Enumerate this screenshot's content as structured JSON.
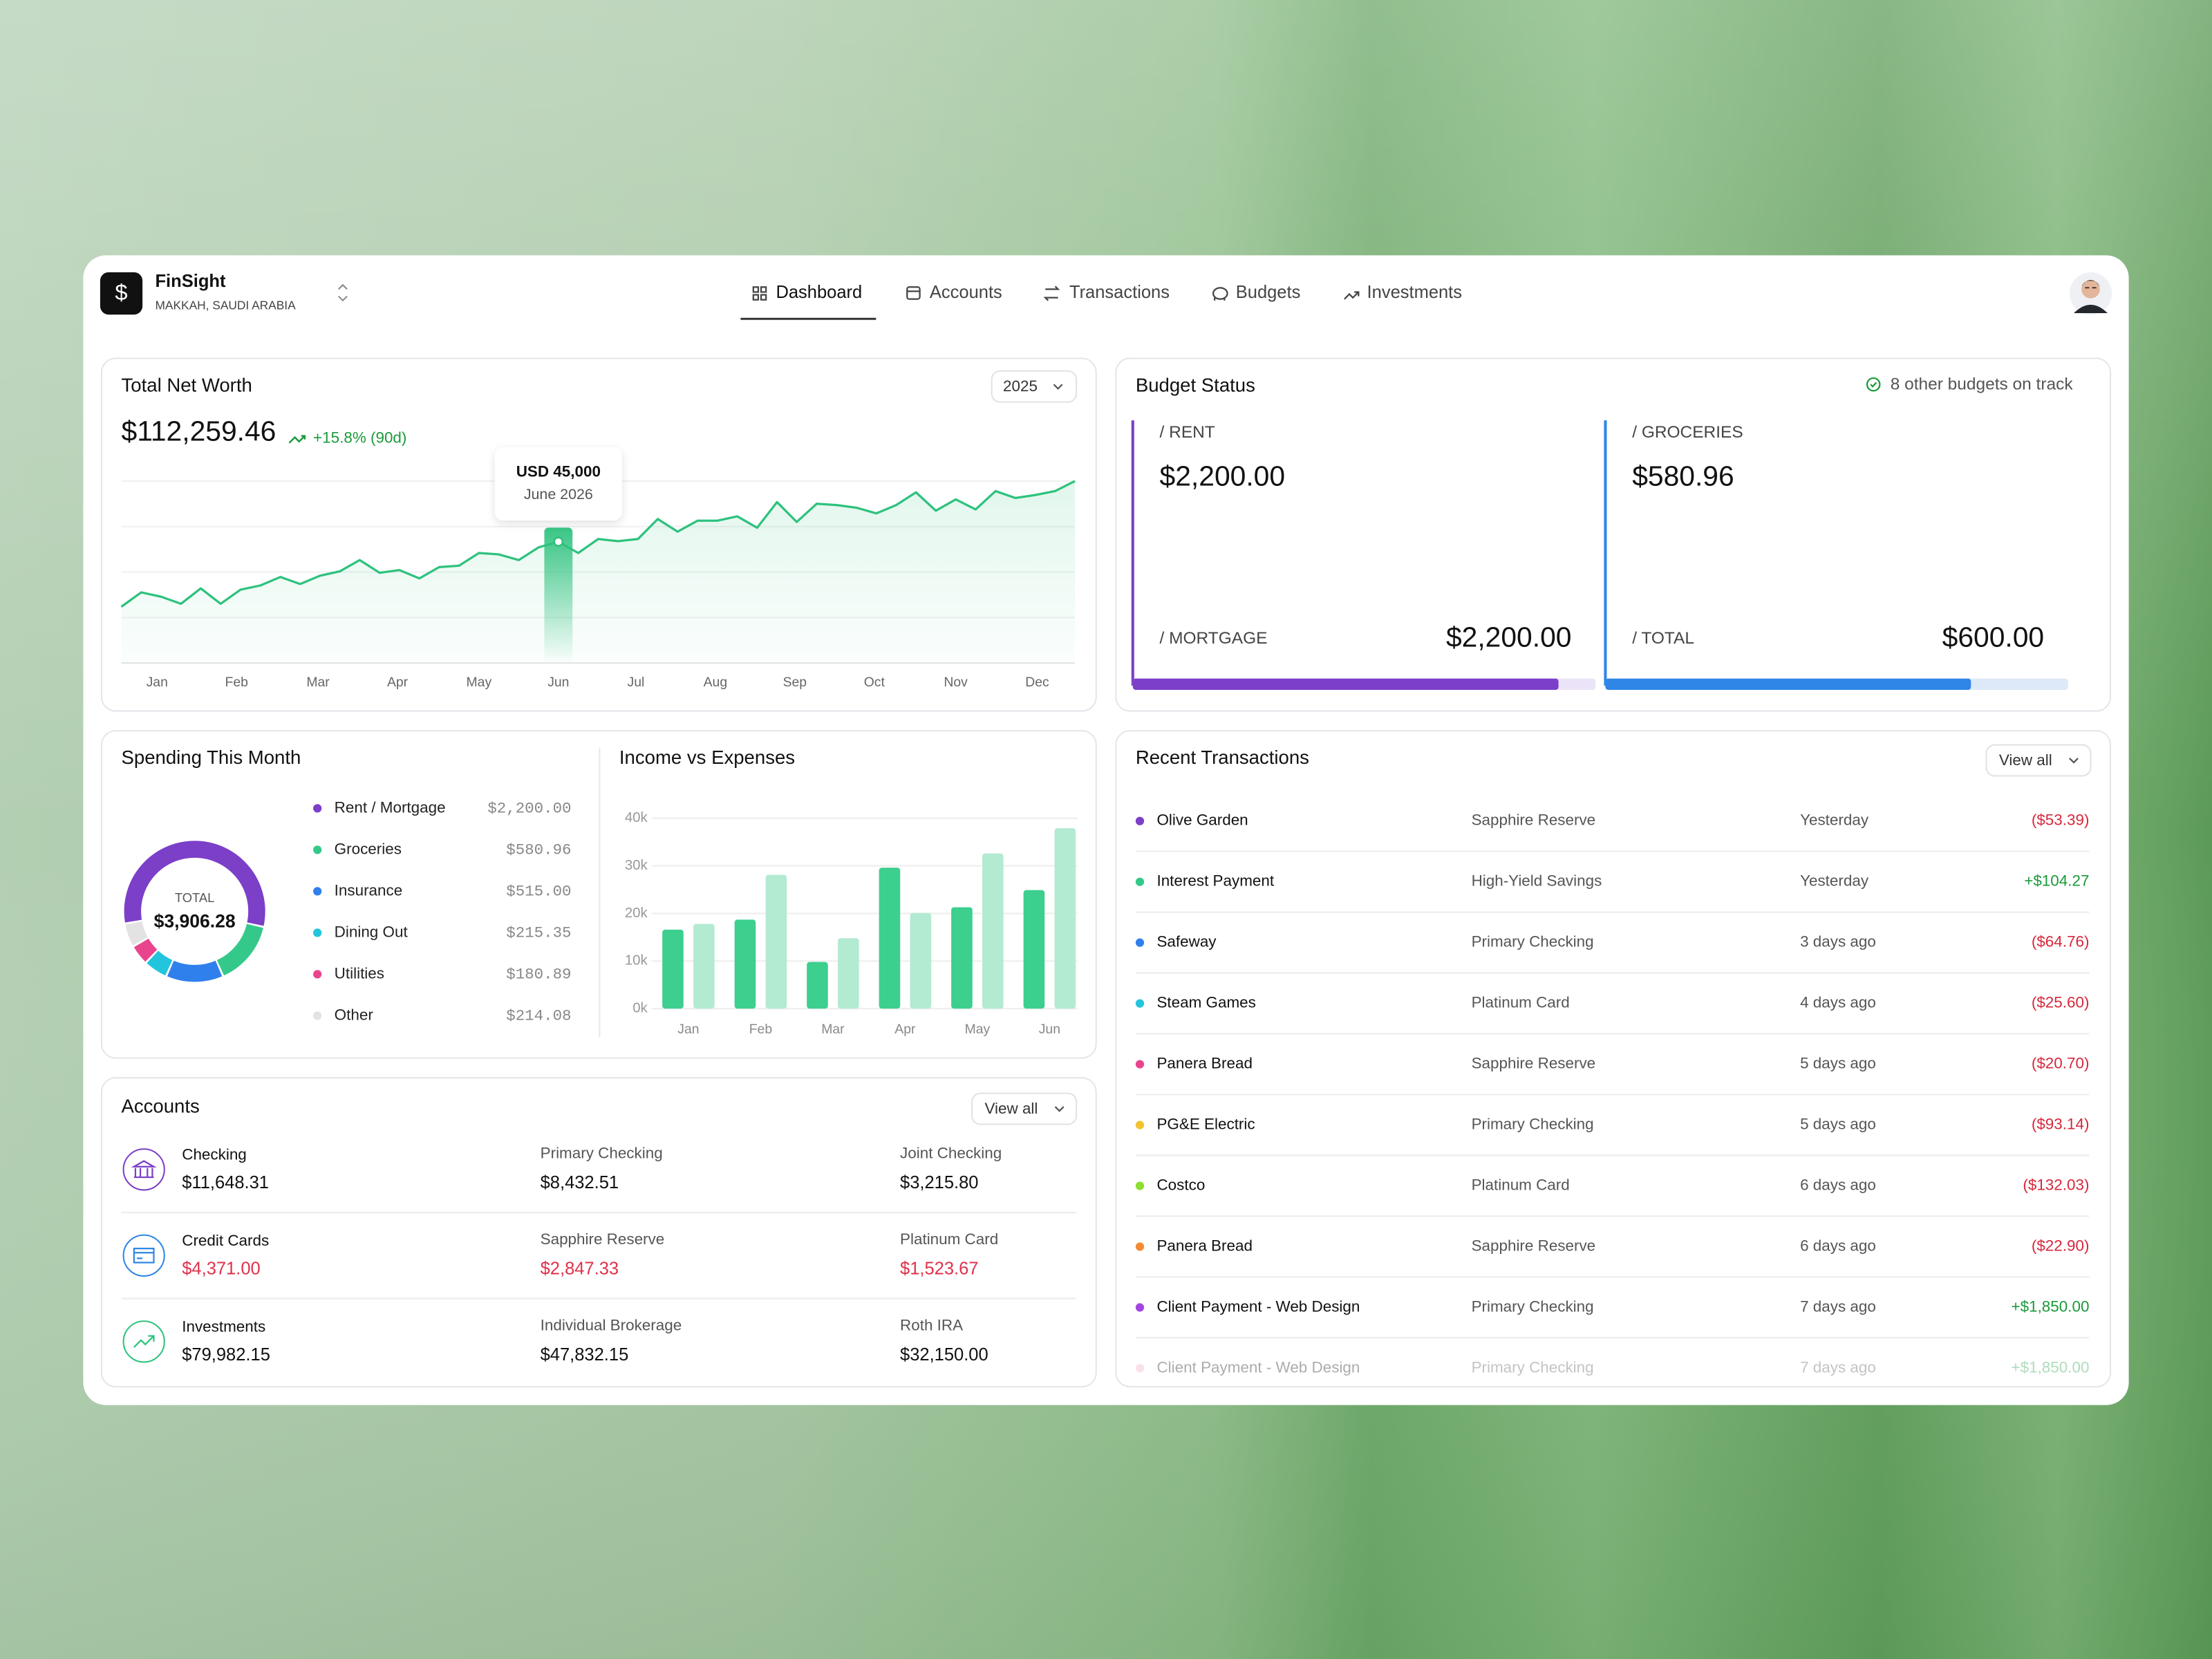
{
  "header": {
    "brand": "FinSight",
    "location": "MAKKAH, SAUDI ARABIA",
    "nav": [
      "Dashboard",
      "Accounts",
      "Transactions",
      "Budgets",
      "Investments"
    ]
  },
  "net_worth": {
    "amount": "$112,259.46",
    "change": "+15.8% (90d)",
    "year": "2025"
  },
  "chart_data": [
    {
      "type": "line",
      "title": "Total Net Worth",
      "color": "#2ec27e",
      "values": [
        20900,
        26200,
        24600,
        22000,
        27700,
        22000,
        27200,
        28800,
        31900,
        29300,
        32400,
        34000,
        38200,
        33500,
        34500,
        31400,
        35600,
        36100,
        40800,
        40300,
        38200,
        42900,
        45000,
        40800,
        46000,
        45200,
        46000,
        53400,
        48700,
        52800,
        52800,
        54400,
        50200,
        59700,
        52300,
        59100,
        58600,
        57600,
        55500,
        58600,
        63300,
        56500,
        60700,
        57000,
        63800,
        61200,
        62300,
        63800,
        67500
      ],
      "xlim": [
        0,
        48
      ],
      "ylim": [
        0,
        67500
      ],
      "xticks": [
        {
          "value": 1.8,
          "label": "Jan"
        },
        {
          "value": 5.8,
          "label": "Feb"
        },
        {
          "value": 9.9,
          "label": "Mar"
        },
        {
          "value": 13.9,
          "label": "Apr"
        },
        {
          "value": 18,
          "label": "May"
        },
        {
          "value": 22,
          "label": "Jun"
        },
        {
          "value": 25.9,
          "label": "Jul"
        },
        {
          "value": 29.9,
          "label": "Aug"
        },
        {
          "value": 33.9,
          "label": "Sep"
        },
        {
          "value": 37.9,
          "label": "Oct"
        },
        {
          "value": 42,
          "label": "Nov"
        },
        {
          "value": 46.1,
          "label": "Dec"
        }
      ],
      "tooltip": {
        "value": 45000,
        "label": "USD 45,000",
        "date": "June 2026"
      }
    },
    {
      "type": "pie",
      "title": "Spending This Month",
      "categories": [
        "Rent / Mortgage",
        "Groceries",
        "Insurance",
        "Dining Out",
        "Utilities",
        "Other"
      ],
      "values": [
        2200,
        580.96,
        515,
        215.35,
        180.89,
        214.08
      ],
      "value_labels": [
        "$2,200.00",
        "$580.96",
        "$515.00",
        "$215.35",
        "$180.89",
        "$214.08"
      ],
      "colors": [
        "#7b3fc8",
        "#34c98a",
        "#2f80ed",
        "#22c5dc",
        "#e9458e",
        "#e3e3e3"
      ],
      "total_label": "TOTAL",
      "total": "$3,906.28"
    },
    {
      "type": "bar",
      "title": "Income vs Expenses",
      "categories": [
        "Jan",
        "Feb",
        "Mar",
        "Apr",
        "May",
        "Jun"
      ],
      "series": [
        {
          "color": "#3ccf8e",
          "values": [
            16600,
            18700,
            9800,
            29600,
            21300,
            24900
          ]
        },
        {
          "color": "#b3ead2",
          "values": [
            17800,
            28100,
            14800,
            20100,
            32600,
            37900
          ]
        }
      ],
      "ylim": [
        0,
        40000
      ],
      "yticks": [
        {
          "value": 0,
          "label": "0k"
        },
        {
          "value": 10000,
          "label": "10k"
        },
        {
          "value": 20000,
          "label": "20k"
        },
        {
          "value": 30000,
          "label": "30k"
        },
        {
          "value": 40000,
          "label": "40k"
        }
      ]
    }
  ],
  "budget": {
    "title": "Budget Status",
    "note": "8 other budgets on track",
    "items": [
      {
        "label": "/ RENT",
        "amount": "$2,200.00",
        "sub_label": "/ MORTGAGE",
        "sub_amount": "$2,200.00",
        "progress": 92,
        "color": "#7b3fc8",
        "track": "#ebe3f7"
      },
      {
        "label": "/ GROCERIES",
        "amount": "$580.96",
        "sub_label": "/ TOTAL",
        "sub_amount": "$600.00",
        "progress": 79,
        "color": "#2f86e6",
        "track": "#dde9f8"
      }
    ]
  },
  "transactions": {
    "title": "Recent Transactions",
    "button": "View all",
    "rows": [
      {
        "name": "Olive Garden",
        "account": "Sapphire Reserve",
        "date": "Yesterday",
        "amount": "($53.39)",
        "color": "#7b3fc8"
      },
      {
        "name": "Interest Payment",
        "account": "High-Yield Savings",
        "date": "Yesterday",
        "amount": "+$104.27",
        "color": "#34c98a"
      },
      {
        "name": "Safeway",
        "account": "Primary Checking",
        "date": "3 days ago",
        "amount": "($64.76)",
        "color": "#2f80ed"
      },
      {
        "name": "Steam Games",
        "account": "Platinum Card",
        "date": "4 days ago",
        "amount": "($25.60)",
        "color": "#22c5dc"
      },
      {
        "name": "Panera Bread",
        "account": "Sapphire Reserve",
        "date": "5 days ago",
        "amount": "($20.70)",
        "color": "#e9458e"
      },
      {
        "name": "PG&E Electric",
        "account": "Primary Checking",
        "date": "5 days ago",
        "amount": "($93.14)",
        "color": "#f2c230"
      },
      {
        "name": "Costco",
        "account": "Platinum Card",
        "date": "6 days ago",
        "amount": "($132.03)",
        "color": "#8be02f"
      },
      {
        "name": "Panera Bread",
        "account": "Sapphire Reserve",
        "date": "6 days ago",
        "amount": "($22.90)",
        "color": "#f58a35"
      },
      {
        "name": "Client Payment - Web Design",
        "account": "Primary Checking",
        "date": "7 days ago",
        "amount": "+$1,850.00",
        "color": "#a445e0"
      },
      {
        "name": "Client Payment - Web Design",
        "account": "Primary Checking",
        "date": "7 days ago",
        "amount": "+$1,850.00",
        "color": "#f4a8c8"
      }
    ]
  },
  "accounts": {
    "title": "Accounts",
    "button": "View all",
    "groups": [
      {
        "name": "Checking",
        "total": "$11,648.31",
        "color": "#7b3fc8",
        "amount_color": "#111111",
        "accounts": [
          {
            "name": "Primary Checking",
            "amount": "$8,432.51"
          },
          {
            "name": "Joint Checking",
            "amount": "$3,215.80"
          }
        ]
      },
      {
        "name": "Credit Cards",
        "total": "$4,371.00",
        "color": "#2f86e6",
        "amount_color": "#e0314b",
        "accounts": [
          {
            "name": "Sapphire Reserve",
            "amount": "$2,847.33"
          },
          {
            "name": "Platinum Card",
            "amount": "$1,523.67"
          }
        ]
      },
      {
        "name": "Investments",
        "total": "$79,982.15",
        "color": "#2ec27e",
        "amount_color": "#111111",
        "accounts": [
          {
            "name": "Individual Brokerage",
            "amount": "$47,832.15"
          },
          {
            "name": "Roth IRA",
            "amount": "$32,150.00"
          }
        ]
      }
    ]
  }
}
